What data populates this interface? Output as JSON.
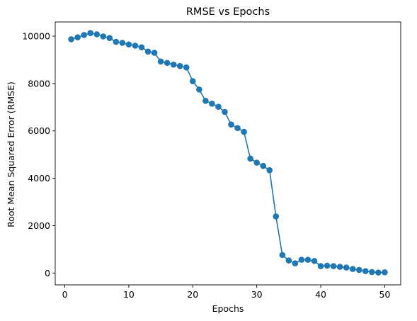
{
  "chart_data": {
    "type": "line",
    "title": "RMSE vs Epochs",
    "xlabel": "Epochs",
    "ylabel": "Root Mean Squared Error (RMSE)",
    "xlim": [
      -1.5,
      52.5
    ],
    "ylim": [
      -500,
      10600
    ],
    "x_ticks": [
      0,
      10,
      20,
      30,
      40,
      50
    ],
    "y_ticks": [
      0,
      2000,
      4000,
      6000,
      8000,
      10000
    ],
    "grid": false,
    "legend": "none",
    "marker": "circle",
    "color": "#1f77b4",
    "series": [
      {
        "x": [
          1,
          2,
          3,
          4,
          5,
          6,
          7,
          8,
          9,
          10,
          11,
          12,
          13,
          14,
          15,
          16,
          17,
          18,
          19,
          20,
          21,
          22,
          23,
          24,
          25,
          26,
          27,
          28,
          29,
          30,
          31,
          32,
          33,
          34,
          35,
          36,
          37,
          38,
          39,
          40,
          41,
          42,
          43,
          44,
          45,
          46,
          47,
          48,
          49,
          50
        ],
        "values": [
          9870,
          9950,
          10050,
          10130,
          10080,
          9990,
          9920,
          9760,
          9720,
          9650,
          9600,
          9530,
          9350,
          9300,
          8930,
          8870,
          8800,
          8740,
          8680,
          8100,
          7750,
          7270,
          7150,
          7020,
          6800,
          6270,
          6120,
          5960,
          4830,
          4660,
          4520,
          4340,
          2390,
          760,
          530,
          410,
          560,
          560,
          510,
          290,
          310,
          290,
          260,
          230,
          170,
          130,
          80,
          40,
          20,
          30
        ]
      }
    ]
  }
}
